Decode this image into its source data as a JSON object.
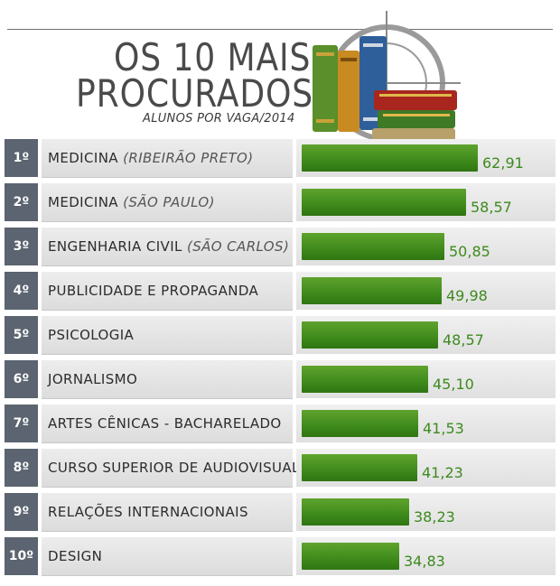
{
  "header": {
    "title_line1": "OS 10 MAIS",
    "title_line2": "PROCURADOS",
    "subtitle": "ALUNOS POR VAGA/2014"
  },
  "colors": {
    "rank_bg": "#5b6470",
    "bar_green": "#3e8a1b",
    "value_green": "#3d8a1e"
  },
  "chart_data": {
    "type": "bar",
    "orientation": "horizontal",
    "title": "OS 10 MAIS PROCURADOS",
    "subtitle": "ALUNOS POR VAGA/2014",
    "xlim": [
      0,
      62.91
    ],
    "categories": [
      {
        "rank": "1º",
        "name": "MEDICINA",
        "location": "(RIBEIRÃO PRETO)",
        "value": 62.91,
        "value_label": "62,91"
      },
      {
        "rank": "2º",
        "name": "MEDICINA",
        "location": "(SÃO PAULO)",
        "value": 58.57,
        "value_label": "58,57"
      },
      {
        "rank": "3º",
        "name": "ENGENHARIA CIVIL",
        "location": "(SÃO CARLOS)",
        "value": 50.85,
        "value_label": "50,85"
      },
      {
        "rank": "4º",
        "name": "PUBLICIDADE E PROPAGANDA",
        "location": "",
        "value": 49.98,
        "value_label": "49,98"
      },
      {
        "rank": "5º",
        "name": "PSICOLOGIA",
        "location": "",
        "value": 48.57,
        "value_label": "48,57"
      },
      {
        "rank": "6º",
        "name": "JORNALISMO",
        "location": "",
        "value": 45.1,
        "value_label": "45,10"
      },
      {
        "rank": "7º",
        "name": "ARTES CÊNICAS - BACHARELADO",
        "location": "",
        "value": 41.53,
        "value_label": "41,53"
      },
      {
        "rank": "8º",
        "name": "CURSO SUPERIOR DE AUDIOVISUAL",
        "location": "",
        "value": 41.23,
        "value_label": "41,23"
      },
      {
        "rank": "9º",
        "name": "RELAÇÕES INTERNACIONAIS",
        "location": "",
        "value": 38.23,
        "value_label": "38,23"
      },
      {
        "rank": "10º",
        "name": "DESIGN",
        "location": "",
        "value": 34.83,
        "value_label": "34,83"
      }
    ]
  }
}
